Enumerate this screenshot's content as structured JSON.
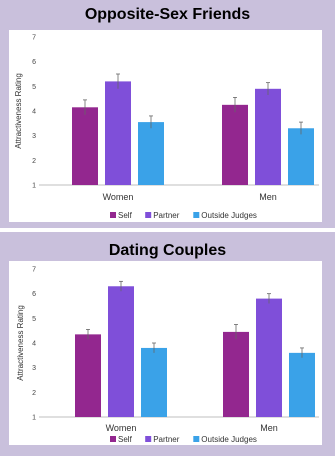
{
  "colors": {
    "self": "#93278f",
    "partner": "#7f4fd9",
    "outside": "#3aa2e8"
  },
  "chart_data": [
    {
      "type": "bar",
      "title": "Opposite-Sex Friends",
      "ylabel": "Attractiveness Rating",
      "categories": [
        "Women",
        "Men"
      ],
      "yticks": [
        "1",
        "2",
        "3",
        "4",
        "5",
        "6",
        "7"
      ],
      "ylim": [
        1,
        7
      ],
      "series": [
        {
          "name": "Self",
          "values": [
            4.15,
            4.25
          ],
          "errors": [
            0.3,
            0.3
          ]
        },
        {
          "name": "Partner",
          "values": [
            5.2,
            4.9
          ],
          "errors": [
            0.3,
            0.25
          ]
        },
        {
          "name": "Outside Judges",
          "values": [
            3.55,
            3.3
          ],
          "errors": [
            0.25,
            0.25
          ]
        }
      ]
    },
    {
      "type": "bar",
      "title": "Dating Couples",
      "ylabel": "Attractiveness Rating",
      "categories": [
        "Women",
        "Men"
      ],
      "yticks": [
        "1",
        "2",
        "3",
        "4",
        "5",
        "6",
        "7"
      ],
      "ylim": [
        1,
        7
      ],
      "series": [
        {
          "name": "Self",
          "values": [
            4.35,
            4.45
          ],
          "errors": [
            0.2,
            0.3
          ]
        },
        {
          "name": "Partner",
          "values": [
            6.3,
            5.8
          ],
          "errors": [
            0.2,
            0.2
          ]
        },
        {
          "name": "Outside Judges",
          "values": [
            3.8,
            3.6
          ],
          "errors": [
            0.2,
            0.2
          ]
        }
      ]
    }
  ]
}
